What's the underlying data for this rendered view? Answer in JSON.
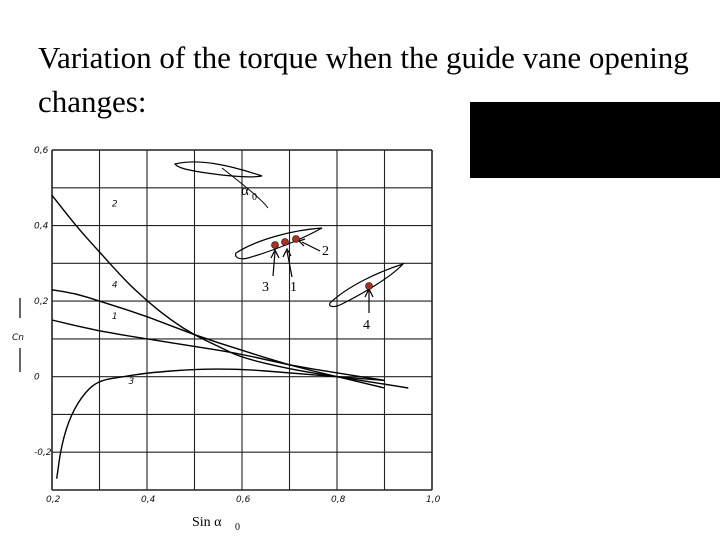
{
  "slide": {
    "title": "Variation of the torque when the guide vane opening changes:",
    "colors": {
      "background": "#ffffff",
      "ink": "#000000",
      "marker": "#b03020",
      "box": "#000000"
    }
  },
  "annotations": {
    "alpha_symbol": "α",
    "alpha_sub": "0",
    "pivot_labels": [
      "2",
      "3",
      "1",
      "4"
    ],
    "xaxis_label": "Sin α",
    "xaxis_sub": "0"
  },
  "chart_data": {
    "type": "line",
    "title": "",
    "xlabel": "Sin α0",
    "ylabel": "Cn",
    "xlim": [
      0.2,
      1.0
    ],
    "ylim": [
      -0.3,
      0.6
    ],
    "xticks": [
      "0,2",
      "0,4",
      "0,6",
      "0,8",
      "1,0"
    ],
    "yticks": [
      "0,6",
      "0,4",
      "0,2",
      "0",
      "-0,2"
    ],
    "grid": true,
    "series": [
      {
        "name": "2",
        "x": [
          0.2,
          0.25,
          0.3,
          0.35,
          0.4,
          0.45,
          0.5,
          0.55,
          0.6,
          0.7,
          0.8,
          0.9,
          0.95
        ],
        "y": [
          0.48,
          0.4,
          0.33,
          0.26,
          0.2,
          0.15,
          0.11,
          0.08,
          0.05,
          0.02,
          0.0,
          -0.02,
          -0.03
        ]
      },
      {
        "name": "4",
        "x": [
          0.2,
          0.25,
          0.3,
          0.4,
          0.5,
          0.6,
          0.7,
          0.8,
          0.9
        ],
        "y": [
          0.23,
          0.22,
          0.2,
          0.16,
          0.11,
          0.07,
          0.03,
          0.0,
          -0.03
        ]
      },
      {
        "name": "1",
        "x": [
          0.2,
          0.3,
          0.4,
          0.5,
          0.6,
          0.7,
          0.8,
          0.9
        ],
        "y": [
          0.15,
          0.12,
          0.1,
          0.08,
          0.06,
          0.03,
          0.01,
          -0.01
        ]
      },
      {
        "name": "3",
        "x": [
          0.21,
          0.22,
          0.24,
          0.27,
          0.3,
          0.35,
          0.4,
          0.5,
          0.6,
          0.7,
          0.8,
          0.9
        ],
        "y": [
          -0.27,
          -0.18,
          -0.1,
          -0.04,
          -0.01,
          0.0,
          0.01,
          0.02,
          0.02,
          0.01,
          0.0,
          -0.01
        ]
      }
    ]
  }
}
